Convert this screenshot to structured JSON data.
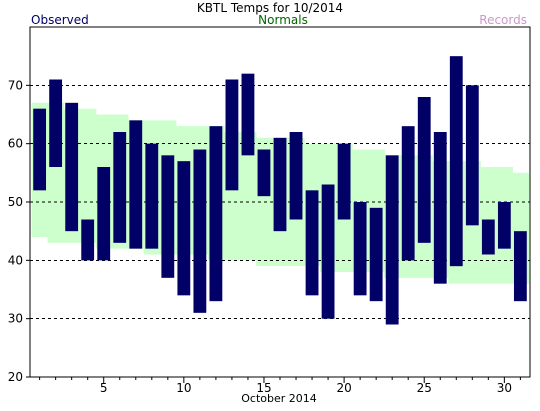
{
  "chart_data": {
    "type": "bar",
    "title": "KBTL Temps for 10/2014",
    "xlabel": "October 2014",
    "ylabel": "",
    "legend": {
      "observed": "Observed",
      "normals": "Normals",
      "records": "Records"
    },
    "colors": {
      "observed": "#000066",
      "normals_band": "#ccffcc",
      "observed_label": "#000066",
      "normals_label": "#006600",
      "records_label": "#cc99cc",
      "grid": "#000000"
    },
    "ylim": [
      20,
      80
    ],
    "yticks": [
      20,
      30,
      40,
      50,
      60,
      70
    ],
    "xlim": [
      1,
      31
    ],
    "xticks": [
      5,
      10,
      15,
      20,
      25,
      30
    ],
    "grid": true,
    "days": [
      1,
      2,
      3,
      4,
      5,
      6,
      7,
      8,
      9,
      10,
      11,
      12,
      13,
      14,
      15,
      16,
      17,
      18,
      19,
      20,
      21,
      22,
      23,
      24,
      25,
      26,
      27,
      28,
      29,
      30,
      31
    ],
    "observed_high": [
      66,
      71,
      67,
      47,
      56,
      62,
      64,
      60,
      58,
      57,
      59,
      63,
      71,
      72,
      59,
      61,
      62,
      52,
      53,
      60,
      50,
      49,
      58,
      63,
      68,
      62,
      75,
      70,
      47,
      50,
      45
    ],
    "observed_low": [
      52,
      56,
      45,
      40,
      40,
      43,
      42,
      42,
      37,
      34,
      31,
      33,
      52,
      58,
      51,
      45,
      47,
      34,
      30,
      47,
      34,
      33,
      29,
      40,
      43,
      36,
      39,
      46,
      41,
      42,
      33
    ],
    "normal_high": [
      67,
      67,
      66,
      66,
      65,
      65,
      64,
      64,
      64,
      63,
      63,
      63,
      62,
      62,
      61,
      61,
      61,
      60,
      60,
      60,
      59,
      59,
      58,
      58,
      58,
      57,
      57,
      57,
      56,
      56,
      55
    ],
    "normal_low": [
      44,
      43,
      43,
      43,
      42,
      42,
      42,
      41,
      41,
      41,
      41,
      40,
      40,
      40,
      39,
      39,
      39,
      39,
      38,
      38,
      38,
      38,
      37,
      37,
      37,
      37,
      36,
      36,
      36,
      36,
      36
    ]
  }
}
